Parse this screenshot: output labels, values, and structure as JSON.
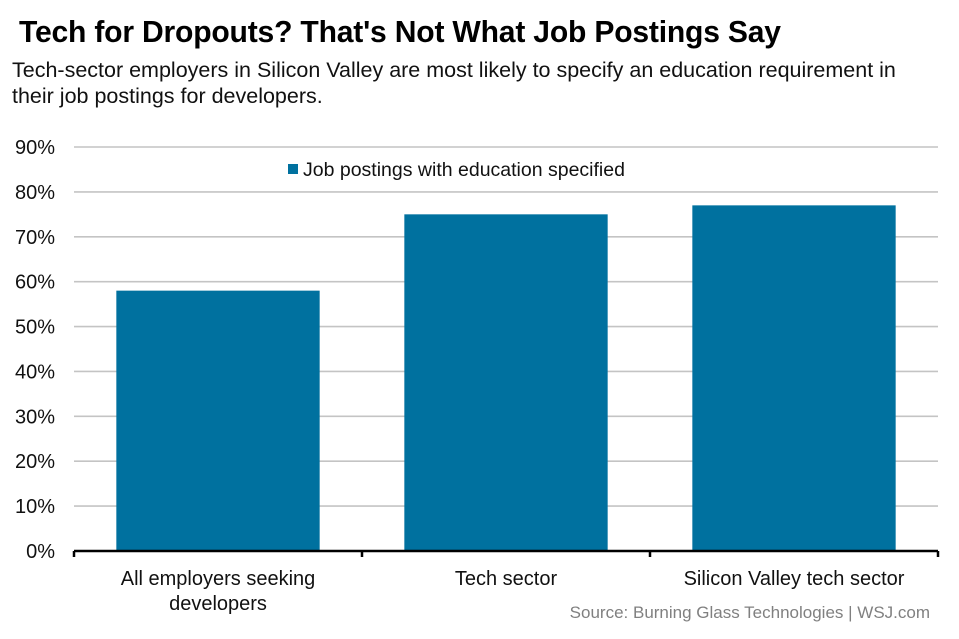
{
  "header": {
    "title": "Tech for Dropouts? That's Not What Job Postings Say",
    "subtitle": "Tech-sector employers in Silicon Valley are most likely to specify an education requirement in their job postings for developers."
  },
  "footer": {
    "source": "Source: Burning Glass Technologies  |  WSJ.com"
  },
  "chart_data": {
    "type": "bar",
    "title": "Tech for Dropouts? That's Not What Job Postings Say",
    "subtitle": "Tech-sector employers in Silicon Valley are most likely to specify an education requirement in their job postings for developers.",
    "categories": [
      [
        "All employers seeking",
        "developers"
      ],
      [
        "Tech sector"
      ],
      [
        "Silicon Valley tech sector"
      ]
    ],
    "series": [
      {
        "name": "Job postings with education specified",
        "values": [
          58,
          75,
          77
        ],
        "color": "#00719f"
      }
    ],
    "xlabel": "",
    "ylabel": "",
    "ylim": [
      0,
      90
    ],
    "yticks": [
      0,
      10,
      20,
      30,
      40,
      50,
      60,
      70,
      80,
      90
    ],
    "ytick_format": "{v}%",
    "grid": true,
    "legend": "top-center",
    "source": "Source: Burning Glass Technologies  |  WSJ.com"
  }
}
